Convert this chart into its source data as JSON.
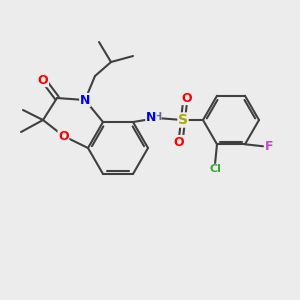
{
  "bg_color": "#ececec",
  "atom_colors": {
    "C": "#404040",
    "N": "#0000ee",
    "O": "#ff0000",
    "S": "#aaaa00",
    "F": "#cc44cc",
    "Cl": "#33aa33",
    "H": "#666688"
  },
  "bond_color": "#404040",
  "figsize": [
    3.0,
    3.0
  ],
  "dpi": 100
}
